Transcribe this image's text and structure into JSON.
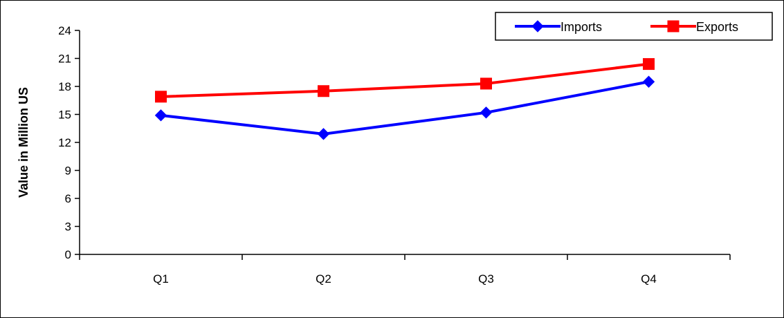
{
  "chart_data": {
    "type": "line",
    "categories": [
      "Q1",
      "Q2",
      "Q3",
      "Q4"
    ],
    "series": [
      {
        "name": "Imports",
        "values": [
          14.9,
          12.9,
          15.2,
          18.5
        ],
        "color": "#0000ff",
        "marker": "diamond"
      },
      {
        "name": "Exports",
        "values": [
          16.9,
          17.5,
          18.3,
          20.4
        ],
        "color": "#ff0000",
        "marker": "square"
      }
    ],
    "ylabel": "Value in Million US",
    "xlabel": "",
    "ylim": [
      0,
      24
    ],
    "y_ticks": [
      0,
      3,
      6,
      9,
      12,
      15,
      18,
      21,
      24
    ],
    "y_tick_labels": [
      "0",
      "3",
      "6",
      "9",
      "12",
      "15",
      "18",
      "21",
      "24"
    ],
    "grid": false,
    "legend_position": "top-right"
  }
}
